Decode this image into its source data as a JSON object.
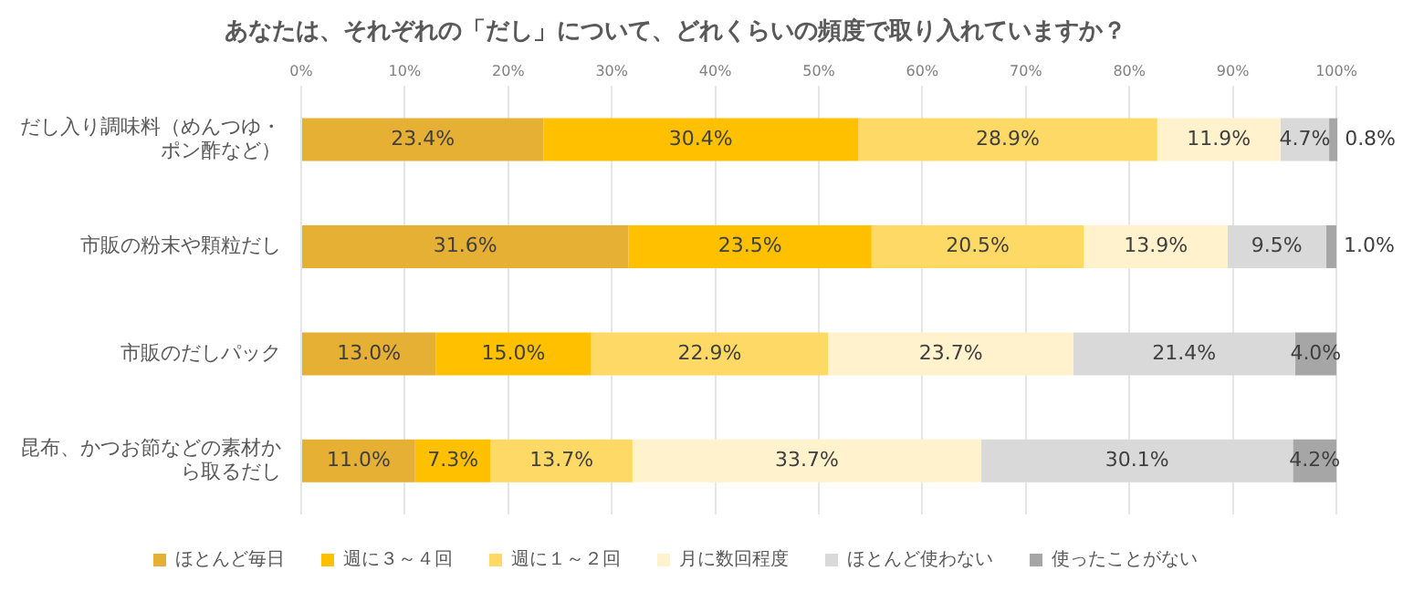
{
  "chart_data": {
    "type": "bar",
    "orientation": "horizontal",
    "stacked": true,
    "title": "あなたは、それぞれの「だし」について、どれくらいの頻度で取り入れていますか？",
    "categories": [
      "だし入り調味料（めんつゆ・ポン酢など）",
      "市販の粉末や顆粒だし",
      "市販のだしパック",
      "昆布、かつお節などの素材から取るだし"
    ],
    "series": [
      {
        "name": "ほとんど毎日",
        "color": "#e6b035",
        "values": [
          23.4,
          31.6,
          13.0,
          11.0
        ],
        "value_labels": [
          "23.4%",
          "31.6%",
          "13.0%",
          "11.0%"
        ]
      },
      {
        "name": "週に３～４回",
        "color": "#ffc000",
        "values": [
          30.4,
          23.5,
          15.0,
          7.3
        ],
        "value_labels": [
          "30.4%",
          "23.5%",
          "15.0%",
          "7.3%"
        ]
      },
      {
        "name": "週に１～２回",
        "color": "#ffd966",
        "values": [
          28.9,
          20.5,
          22.9,
          13.7
        ],
        "value_labels": [
          "28.9%",
          "20.5%",
          "22.9%",
          "13.7%"
        ]
      },
      {
        "name": "月に数回程度",
        "color": "#fff2cc",
        "values": [
          11.9,
          13.9,
          23.7,
          33.7
        ],
        "value_labels": [
          "11.9%",
          "13.9%",
          "23.7%",
          "33.7%"
        ]
      },
      {
        "name": "ほとんど使わない",
        "color": "#d9d9d9",
        "values": [
          4.7,
          9.5,
          21.4,
          30.1
        ],
        "value_labels": [
          "4.7%",
          "9.5%",
          "21.4%",
          "30.1%"
        ]
      },
      {
        "name": "使ったことがない",
        "color": "#a6a6a6",
        "values": [
          0.8,
          1.0,
          4.0,
          4.2
        ],
        "value_labels": [
          "0.8%",
          "1.0%",
          "4.0%",
          "4.2%"
        ]
      }
    ],
    "xlim": [
      0,
      100
    ],
    "xticks": [
      {
        "value": 0,
        "label": "0%"
      },
      {
        "value": 10,
        "label": "10%"
      },
      {
        "value": 20,
        "label": "20%"
      },
      {
        "value": 30,
        "label": "30%"
      },
      {
        "value": 40,
        "label": "40%"
      },
      {
        "value": 50,
        "label": "50%"
      },
      {
        "value": 60,
        "label": "60%"
      },
      {
        "value": 70,
        "label": "70%"
      },
      {
        "value": 80,
        "label": "80%"
      },
      {
        "value": 90,
        "label": "90%"
      },
      {
        "value": 100,
        "label": "100%"
      }
    ],
    "grid": "x",
    "legend": "bottom"
  }
}
